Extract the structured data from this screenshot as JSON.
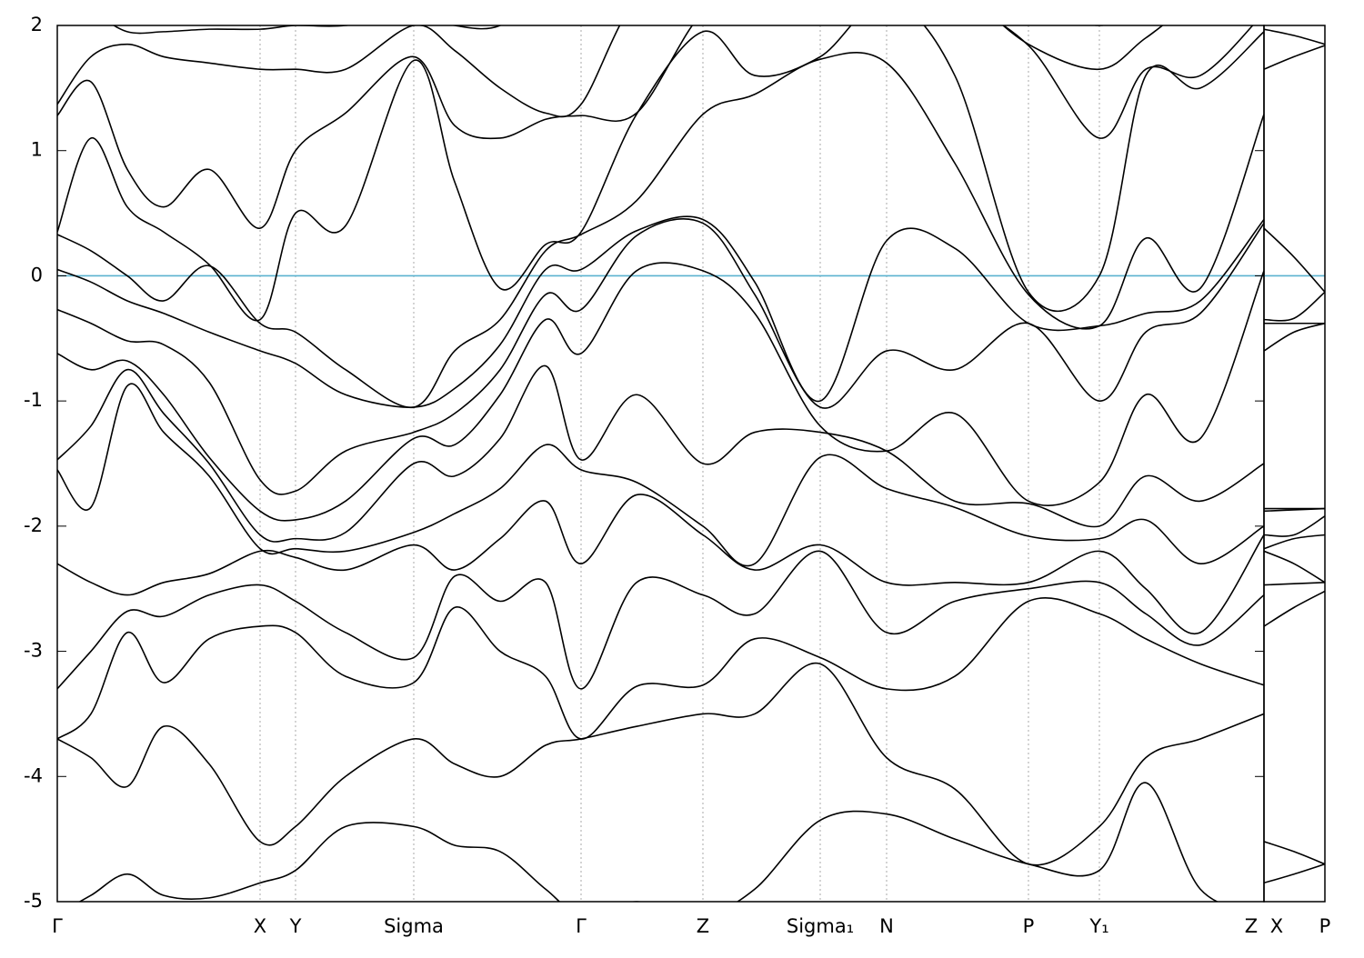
{
  "chart_data": [
    {
      "type": "line",
      "color": "#000000",
      "grid": true,
      "reference_line": {
        "value": 0,
        "color": "#5ab2cf"
      },
      "xlim": [
        0,
        13.27
      ],
      "ylim": [
        -5,
        2
      ],
      "yticks": [
        -5,
        -4,
        -3,
        -2,
        -1,
        0,
        1,
        2
      ],
      "xticks": [
        {
          "value": 0,
          "label": "Γ"
        },
        {
          "value": 2.23,
          "label": "X"
        },
        {
          "value": 2.62,
          "label": "Y"
        },
        {
          "value": 3.92,
          "label": "Sigma"
        },
        {
          "value": 5.76,
          "label": "Γ"
        },
        {
          "value": 7.1,
          "label": "Z"
        },
        {
          "value": 8.39,
          "label": "Sigma₁"
        },
        {
          "value": 9.12,
          "label": "N"
        },
        {
          "value": 10.68,
          "label": "P"
        },
        {
          "value": 11.46,
          "label": "Y₁"
        },
        {
          "value": 13.27,
          "label": "Z"
        }
      ],
      "x": [
        0,
        0.37,
        0.77,
        1.17,
        1.67,
        2.23,
        2.62,
        3.17,
        3.92,
        4.37,
        4.87,
        5.37,
        5.76,
        6.37,
        7.1,
        7.67,
        8.39,
        9.12,
        9.87,
        10.68,
        11.46,
        11.97,
        12.57,
        13.27
      ],
      "series": [
        {
          "values": [
            -5.1,
            -4.95,
            -4.78,
            -4.95,
            -4.97,
            -4.85,
            -4.75,
            -4.4,
            -4.4,
            -4.55,
            -4.6,
            -4.9,
            -5.1,
            -5.0,
            -5.1,
            -4.9,
            -4.35,
            -4.3,
            -4.5,
            -4.7,
            -4.75,
            -4.05,
            -4.9,
            -5.1
          ]
        },
        {
          "values": [
            -3.7,
            -3.85,
            -4.08,
            -3.6,
            -3.9,
            -4.52,
            -4.4,
            -4.0,
            -3.7,
            -3.9,
            -4.0,
            -3.75,
            -3.7,
            -3.6,
            -3.5,
            -3.5,
            -3.1,
            -3.85,
            -4.1,
            -4.7,
            -4.4,
            -3.85,
            -3.7,
            -3.5
          ]
        },
        {
          "values": [
            -3.7,
            -3.5,
            -2.85,
            -3.25,
            -2.9,
            -2.8,
            -2.85,
            -3.2,
            -3.25,
            -2.65,
            -3.0,
            -3.2,
            -3.7,
            -3.28,
            -3.27,
            -2.9,
            -3.05,
            -3.3,
            -3.2,
            -2.6,
            -2.7,
            -2.9,
            -3.1,
            -3.27
          ]
        },
        {
          "values": [
            -3.3,
            -3.0,
            -2.68,
            -2.72,
            -2.55,
            -2.47,
            -2.6,
            -2.85,
            -3.05,
            -2.4,
            -2.6,
            -2.45,
            -3.3,
            -2.45,
            -2.55,
            -2.7,
            -2.2,
            -2.85,
            -2.6,
            -2.5,
            -2.45,
            -2.7,
            -2.95,
            -2.55
          ]
        },
        {
          "values": [
            -2.3,
            -2.45,
            -2.55,
            -2.45,
            -2.38,
            -2.2,
            -2.25,
            -2.35,
            -2.15,
            -2.35,
            -2.1,
            -1.8,
            -2.3,
            -1.75,
            -2.07,
            -2.35,
            -2.15,
            -2.45,
            -2.45,
            -2.45,
            -2.2,
            -2.5,
            -2.85,
            -2.07
          ]
        },
        {
          "values": [
            -1.55,
            -1.85,
            -0.88,
            -1.25,
            -1.6,
            -2.18,
            -2.18,
            -2.2,
            -2.05,
            -1.9,
            -1.7,
            -1.35,
            -1.55,
            -1.65,
            -2.0,
            -2.3,
            -1.45,
            -1.7,
            -1.85,
            -2.08,
            -2.1,
            -1.95,
            -2.3,
            -2.0
          ]
        },
        {
          "values": [
            -1.47,
            -1.2,
            -0.75,
            -1.1,
            -1.5,
            -2.07,
            -2.1,
            -2.05,
            -1.5,
            -1.6,
            -1.3,
            -0.72,
            -1.47,
            -0.95,
            -1.5,
            -1.25,
            -1.25,
            -1.4,
            -1.8,
            -1.82,
            -2.0,
            -1.6,
            -1.8,
            -1.5
          ]
        },
        {
          "values": [
            -0.62,
            -0.75,
            -0.68,
            -0.95,
            -1.45,
            -1.88,
            -1.95,
            -1.8,
            -1.3,
            -1.35,
            -0.95,
            -0.35,
            -0.62,
            0.04,
            0.04,
            -0.3,
            -1.2,
            -1.4,
            -1.1,
            -1.8,
            -1.65,
            -0.95,
            -1.3,
            0.04
          ]
        },
        {
          "values": [
            -0.27,
            -0.38,
            -0.52,
            -0.55,
            -0.85,
            -1.63,
            -1.72,
            -1.4,
            -1.25,
            -1.1,
            -0.75,
            -0.15,
            -0.27,
            0.32,
            0.42,
            -0.15,
            -1.05,
            -0.6,
            -0.75,
            -0.38,
            -1.0,
            -0.45,
            -0.3,
            0.42
          ]
        },
        {
          "values": [
            0.05,
            -0.05,
            -0.2,
            -0.3,
            -0.45,
            -0.6,
            -0.7,
            -0.95,
            -1.05,
            -0.9,
            -0.55,
            0.05,
            0.05,
            0.36,
            0.45,
            -0.05,
            -1.0,
            0.28,
            0.22,
            -0.38,
            -0.4,
            -0.3,
            -0.2,
            0.45
          ]
        },
        {
          "values": [
            0.33,
            0.2,
            0.0,
            -0.2,
            0.08,
            -0.38,
            -0.45,
            -0.75,
            -1.05,
            -0.6,
            -0.35,
            0.2,
            0.33,
            0.6,
            1.29,
            1.45,
            1.73,
            1.7,
            0.9,
            -0.15,
            -0.4,
            0.3,
            -0.1,
            1.29
          ]
        },
        {
          "values": [
            0.35,
            1.1,
            0.55,
            0.35,
            0.09,
            -0.35,
            0.5,
            0.4,
            1.72,
            0.75,
            -0.1,
            0.25,
            0.35,
            1.29,
            1.95,
            1.6,
            1.75,
            2.2,
            1.6,
            -0.13,
            0.0,
            1.6,
            1.5,
            1.95
          ]
        },
        {
          "values": [
            1.28,
            1.55,
            0.85,
            0.55,
            0.85,
            0.38,
            1.0,
            1.3,
            1.75,
            1.2,
            1.1,
            1.25,
            1.28,
            1.3,
            2.1,
            2.1,
            2.1,
            2.3,
            2.2,
            1.84,
            1.1,
            1.65,
            1.6,
            2.1
          ]
        },
        {
          "values": [
            1.37,
            1.75,
            1.85,
            1.75,
            1.7,
            1.65,
            1.65,
            1.65,
            2.0,
            1.8,
            1.5,
            1.3,
            1.37,
            2.2,
            2.3,
            2.3,
            2.3,
            2.4,
            2.3,
            1.85,
            1.65,
            1.9,
            2.2,
            2.3
          ]
        },
        {
          "values": [
            2.1,
            2.1,
            1.95,
            1.95,
            1.97,
            1.97,
            2.0,
            2.0,
            2.1,
            2.0,
            2.0,
            2.3,
            2.1,
            2.3,
            2.4,
            2.4,
            2.4,
            2.5,
            2.5,
            2.2,
            2.0,
            2.2,
            2.3,
            2.4
          ]
        }
      ]
    },
    {
      "type": "line",
      "color": "#000000",
      "grid": true,
      "reference_line": {
        "value": 0,
        "color": "#5ab2cf"
      },
      "xlim": [
        13.27,
        13.94
      ],
      "ylim": [
        -5,
        2
      ],
      "xticks": [
        {
          "value": 13.27,
          "label": "X"
        },
        {
          "value": 13.94,
          "label": "P"
        }
      ],
      "x": [
        13.27,
        13.6,
        13.94
      ],
      "series": [
        {
          "values": [
            -4.85,
            -4.78,
            -4.7
          ]
        },
        {
          "values": [
            -4.52,
            -4.6,
            -4.7
          ]
        },
        {
          "values": [
            -2.8,
            -2.65,
            -2.52
          ]
        },
        {
          "values": [
            -2.47,
            -2.46,
            -2.45
          ]
        },
        {
          "values": [
            -2.2,
            -2.3,
            -2.45
          ]
        },
        {
          "values": [
            -2.18,
            -2.1,
            -2.07
          ]
        },
        {
          "values": [
            -2.07,
            -2.07,
            -1.92
          ]
        },
        {
          "values": [
            -1.88,
            -1.87,
            -1.86
          ]
        },
        {
          "values": [
            -1.86,
            -1.86,
            -1.86
          ]
        },
        {
          "values": [
            -0.6,
            -0.45,
            -0.38
          ]
        },
        {
          "values": [
            -0.38,
            -0.38,
            -0.38
          ]
        },
        {
          "values": [
            -0.35,
            -0.34,
            -0.13
          ]
        },
        {
          "values": [
            0.38,
            0.15,
            -0.13
          ]
        },
        {
          "values": [
            1.65,
            1.75,
            1.84
          ]
        },
        {
          "values": [
            1.97,
            1.92,
            1.85
          ]
        }
      ]
    }
  ]
}
